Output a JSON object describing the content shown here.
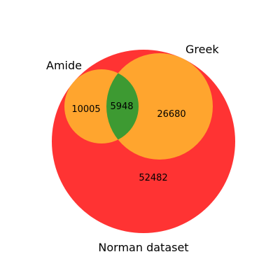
{
  "diagram": {
    "type": "venn",
    "sets": {
      "outer": {
        "label": "Norman dataset",
        "color": "#ff0000"
      },
      "left": {
        "label": "Amide",
        "color": "#ffb12e"
      },
      "right": {
        "label": "Greek",
        "color": "#ffb12e"
      }
    },
    "intersection_color": "#339933",
    "counts": {
      "amide_only": "10005",
      "amide_and_greek": "5948",
      "greek_only": "26680",
      "norman_only": "52482"
    }
  }
}
